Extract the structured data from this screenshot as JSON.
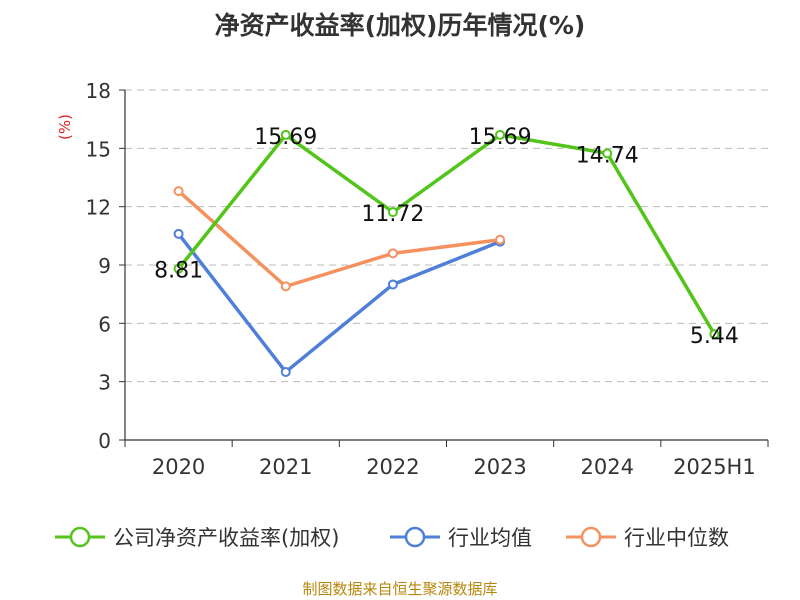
{
  "chart_data": {
    "type": "line",
    "title": "净资产收益率(加权)历年情况(%)",
    "ylabel": "(%)",
    "xlabel": "",
    "categories": [
      "2020",
      "2021",
      "2022",
      "2023",
      "2024",
      "2025H1"
    ],
    "ylim": [
      0,
      18
    ],
    "yticks": [
      0,
      3,
      6,
      9,
      12,
      15,
      18
    ],
    "grid": true,
    "legend_position": "bottom",
    "series": [
      {
        "name": "公司净资产收益率(加权)",
        "color": "#52c41a",
        "values": [
          8.81,
          15.69,
          11.72,
          15.69,
          14.74,
          5.44
        ],
        "show_labels": true
      },
      {
        "name": "行业均值",
        "color": "#4f7fd8",
        "values": [
          10.6,
          3.5,
          8.0,
          10.2,
          null,
          null
        ],
        "show_labels": false
      },
      {
        "name": "行业中位数",
        "color": "#f5905f",
        "values": [
          12.8,
          7.9,
          9.6,
          10.3,
          null,
          null
        ],
        "show_labels": false
      }
    ],
    "data_labels": [
      "8.81",
      "15.69",
      "11.72",
      "15.69",
      "14.74",
      "5.44"
    ]
  },
  "source": "制图数据来自恒生聚源数据库",
  "colors": {
    "axis": "#333333",
    "grid": "#bbbbbb",
    "ylabel": "#e02020",
    "source": "#b8860b"
  }
}
